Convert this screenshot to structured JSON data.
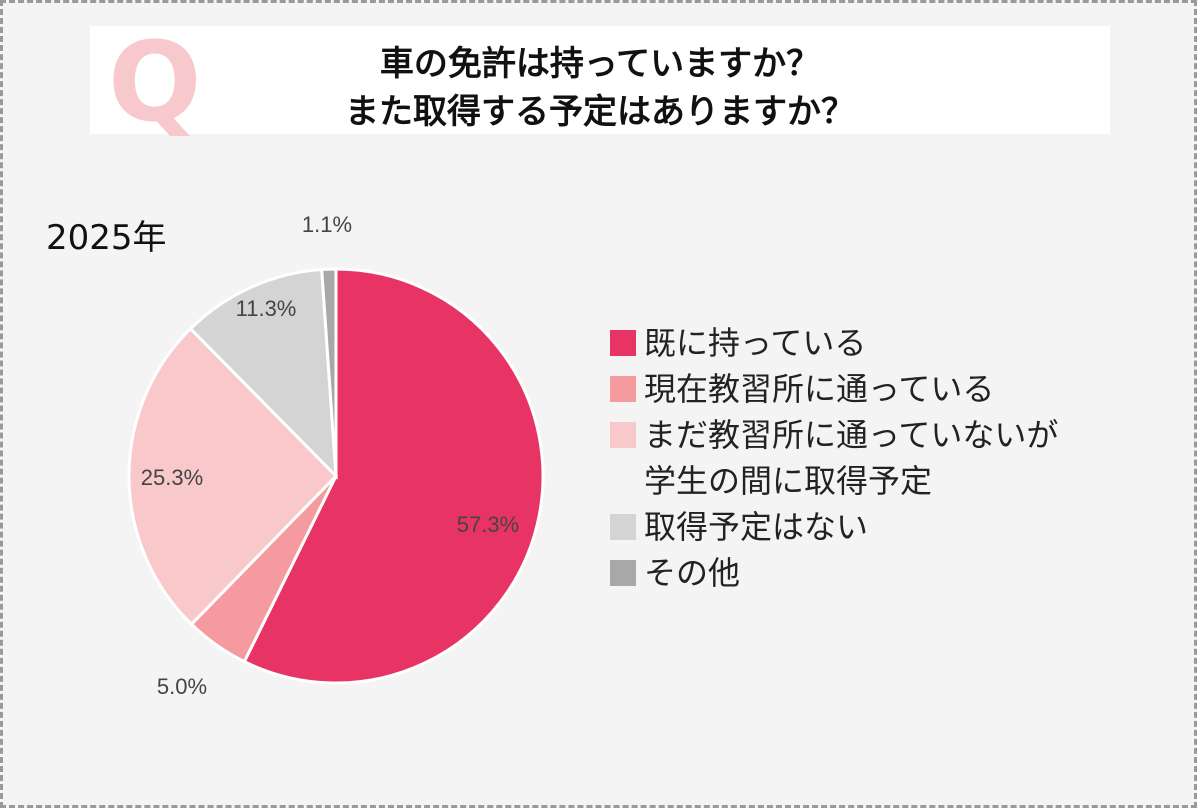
{
  "question": {
    "mark": "Q",
    "line1": "車の免許は持っていますか？",
    "line2": "また取得する予定はありますか？"
  },
  "year_label": "2025年",
  "chart_data": {
    "type": "pie",
    "title": "車の免許は持っていますか？ また取得する予定はありますか？",
    "subtitle": "2025年",
    "start_angle_deg": 0,
    "direction": "clockwise",
    "legend_position": "right",
    "slices": [
      {
        "label": "既に持っている",
        "value": 57.3,
        "display": "57.3%",
        "color": "#e83464"
      },
      {
        "label": "現在教習所に通っている",
        "value": 5.0,
        "display": "5.0%",
        "color": "#f59a9e"
      },
      {
        "label": "まだ教習所に通っていないが\n学生の間に取得予定",
        "value": 25.3,
        "display": "25.3%",
        "color": "#f9c8cb"
      },
      {
        "label": "取得予定はない",
        "value": 11.3,
        "display": "11.3%",
        "color": "#d4d4d4"
      },
      {
        "label": "その他",
        "value": 1.1,
        "display": "1.1%",
        "color": "#a8a8a8"
      }
    ]
  }
}
